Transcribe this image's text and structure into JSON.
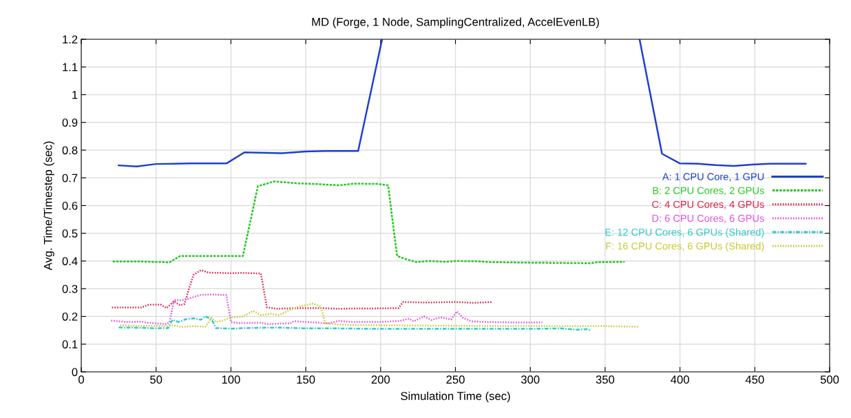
{
  "chart_data": {
    "type": "line",
    "title": "MD (Forge, 1 Node, SamplingCentralized, AccelEvenLB)",
    "xlabel": "Simulation Time (sec)",
    "ylabel": "Avg. Time/Timestep (sec)",
    "xlim": [
      0,
      500
    ],
    "xticks": [
      0,
      50,
      100,
      150,
      200,
      250,
      300,
      350,
      400,
      450,
      500
    ],
    "ylim": [
      0,
      1.2
    ],
    "yticks": [
      0,
      0.1,
      0.2,
      0.3,
      0.4,
      0.5,
      0.6,
      0.7,
      0.8,
      0.9,
      1,
      1.1,
      1.2
    ],
    "grid": true,
    "legend": "right",
    "marker": "none",
    "series": [
      {
        "name": "A: 1 CPU Core, 1 GPU",
        "color": "#1f3fd0",
        "line_style": "solid",
        "x": [
          25,
          37,
          50,
          73,
          97,
          109,
          134,
          150,
          163,
          185,
          201,
          287,
          373,
          388,
          400,
          412,
          424,
          436,
          448,
          460,
          484
        ],
        "values": [
          0.745,
          0.741,
          0.75,
          0.752,
          0.752,
          0.792,
          0.789,
          0.795,
          0.797,
          0.797,
          1.2,
          null,
          1.2,
          0.787,
          0.752,
          0.751,
          0.746,
          0.743,
          0.748,
          0.751,
          0.751
        ]
      },
      {
        "name": "B: 2 CPU Cores, 2 GPUs",
        "color": "#22c81e",
        "line_style": "dashed",
        "x": [
          21,
          40,
          55,
          59,
          66,
          82,
          108,
          118,
          129,
          145,
          160,
          172,
          182,
          198,
          205,
          211,
          218,
          224,
          232,
          244,
          250,
          265,
          273,
          300,
          320,
          340,
          345,
          363
        ],
        "values": [
          0.398,
          0.398,
          0.396,
          0.395,
          0.418,
          0.418,
          0.418,
          0.67,
          0.687,
          0.68,
          0.677,
          0.673,
          0.679,
          0.678,
          0.673,
          0.418,
          0.405,
          0.396,
          0.4,
          0.397,
          0.4,
          0.399,
          0.396,
          0.394,
          0.393,
          0.392,
          0.396,
          0.397
        ]
      },
      {
        "name": "C: 4 CPU Cores, 4 GPUs",
        "color": "#e0204a",
        "line_style": "dotted",
        "x": [
          20.5,
          40,
          45,
          53,
          57,
          62,
          66,
          69,
          72,
          75,
          80,
          85,
          100,
          107,
          120,
          124,
          130,
          150,
          160,
          170,
          200,
          212,
          215,
          230,
          250,
          262,
          275
        ],
        "values": [
          0.232,
          0.232,
          0.242,
          0.243,
          0.23,
          0.255,
          0.24,
          0.245,
          0.3,
          0.35,
          0.367,
          0.358,
          0.356,
          0.357,
          0.355,
          0.233,
          0.228,
          0.23,
          0.23,
          0.228,
          0.229,
          0.23,
          0.252,
          0.25,
          0.252,
          0.249,
          0.252
        ]
      },
      {
        "name": "D: 6 CPU Cores, 6 GPUs",
        "color": "#e050e0",
        "line_style": "dotted",
        "x": [
          20,
          30,
          40,
          45,
          57,
          59,
          62,
          67,
          72,
          80,
          88,
          97,
          100,
          105,
          120,
          125,
          140,
          142,
          160,
          165,
          172,
          180,
          200,
          213,
          219,
          222,
          229,
          234,
          240,
          247,
          251,
          255,
          261,
          270,
          290,
          308
        ],
        "values": [
          0.185,
          0.18,
          0.181,
          0.177,
          0.172,
          0.18,
          0.26,
          0.258,
          0.265,
          0.278,
          0.279,
          0.277,
          0.18,
          0.176,
          0.177,
          0.172,
          0.176,
          0.183,
          0.177,
          0.175,
          0.184,
          0.18,
          0.18,
          0.184,
          0.192,
          0.182,
          0.2,
          0.187,
          0.197,
          0.189,
          0.218,
          0.195,
          0.182,
          0.18,
          0.178,
          0.178
        ]
      },
      {
        "name": "E: 12 CPU Cores, 6 GPUs (Shared)",
        "color": "#30c8c8",
        "line_style": "dashdot",
        "x": [
          25,
          40,
          50,
          58,
          61,
          65,
          70,
          75,
          80,
          83,
          87,
          90,
          100,
          110,
          130,
          150,
          170,
          200,
          250,
          300,
          320,
          330,
          338,
          340
        ],
        "values": [
          0.16,
          0.159,
          0.157,
          0.158,
          0.188,
          0.18,
          0.19,
          0.193,
          0.188,
          0.2,
          0.19,
          0.158,
          0.156,
          0.158,
          0.16,
          0.157,
          0.157,
          0.155,
          0.155,
          0.155,
          0.157,
          0.152,
          0.154,
          0.15
        ]
      },
      {
        "name": "F: 16 CPU Cores, 6 GPUs (Shared)",
        "color": "#c8c830",
        "line_style": "dotted",
        "x": [
          26,
          40,
          50,
          58,
          62,
          67,
          75,
          83,
          87,
          90,
          95,
          100,
          108,
          115,
          120,
          127,
          132,
          140,
          145,
          150,
          155,
          160,
          163,
          175,
          200,
          250,
          300,
          350,
          372
        ],
        "values": [
          0.168,
          0.165,
          0.166,
          0.165,
          0.168,
          0.162,
          0.165,
          0.163,
          0.195,
          0.18,
          0.186,
          0.196,
          0.2,
          0.22,
          0.205,
          0.21,
          0.205,
          0.225,
          0.235,
          0.24,
          0.247,
          0.235,
          0.175,
          0.17,
          0.168,
          0.166,
          0.165,
          0.165,
          0.163
        ]
      }
    ]
  }
}
